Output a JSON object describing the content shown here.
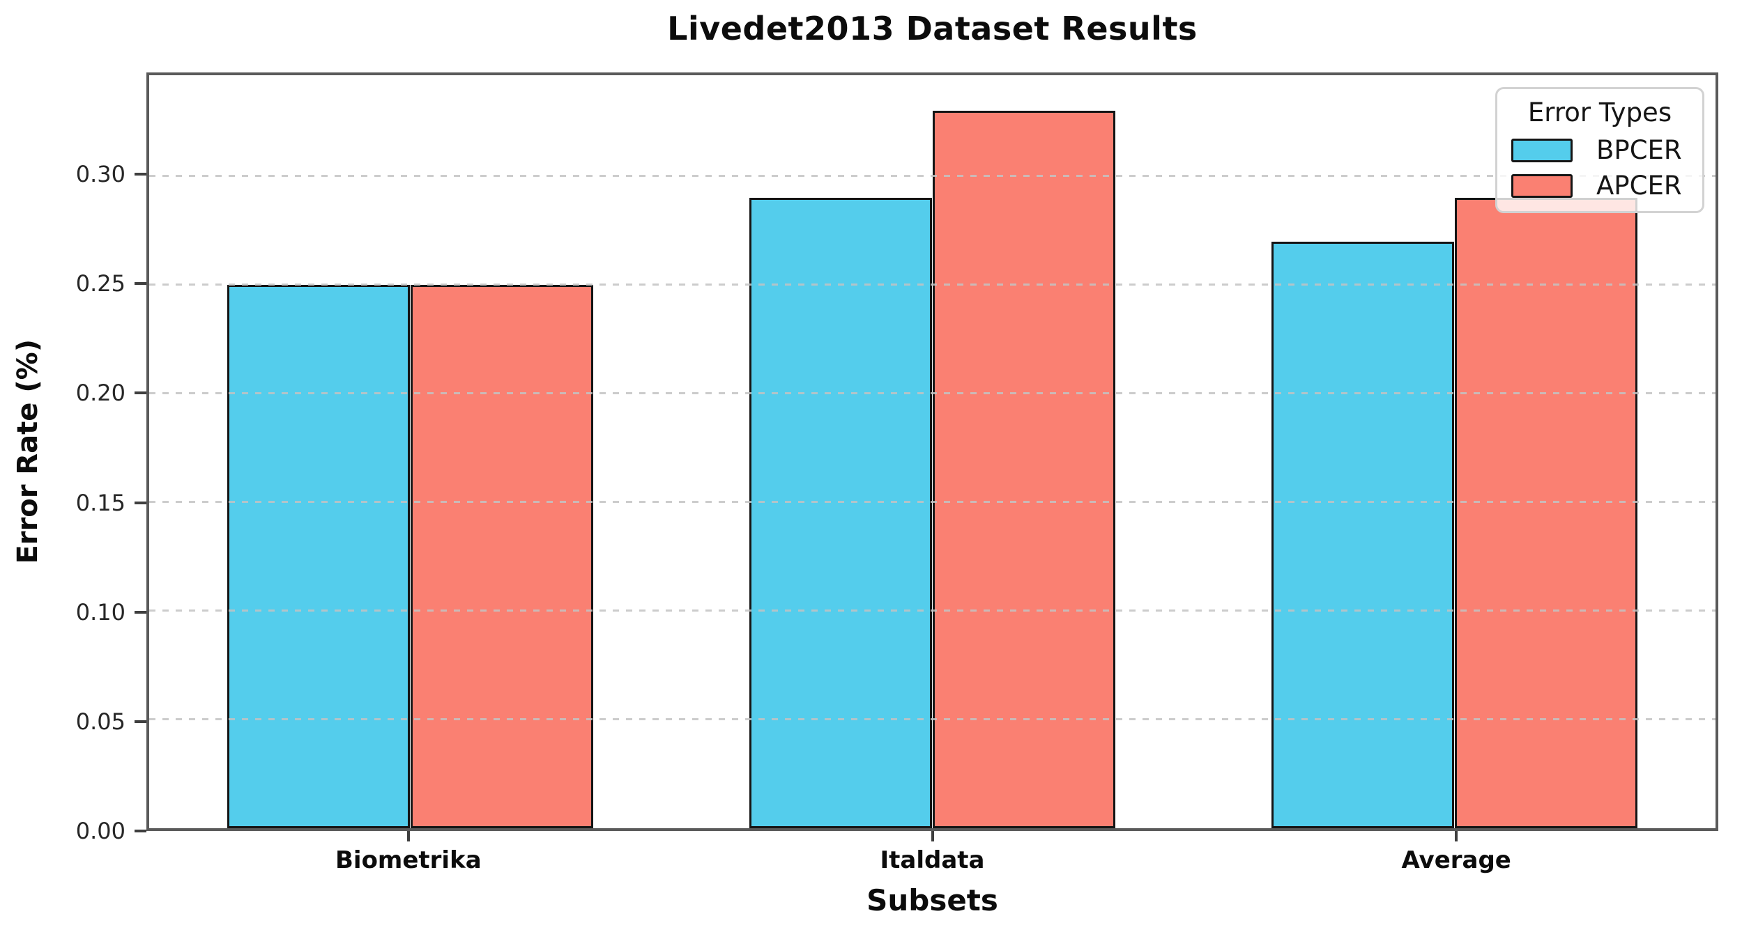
{
  "chart_data": {
    "type": "bar",
    "title": "Livedet2013 Dataset Results",
    "xlabel": "Subsets",
    "ylabel": "Error Rate (%)",
    "categories": [
      "Biometrika",
      "Italdata",
      "Average"
    ],
    "series": [
      {
        "name": "BPCER",
        "color": "#54cdec",
        "values": [
          0.25,
          0.29,
          0.27
        ]
      },
      {
        "name": "APCER",
        "color": "#fa8072",
        "values": [
          0.25,
          0.33,
          0.29
        ]
      }
    ],
    "legend": {
      "title": "Error Types",
      "position": "upper-right"
    },
    "ylim": [
      0,
      0.3465
    ],
    "yticks": [
      0.0,
      0.05,
      0.1,
      0.15,
      0.2,
      0.25,
      0.3
    ],
    "ytick_labels": [
      "0.00",
      "0.05",
      "0.10",
      "0.15",
      "0.20",
      "0.25",
      "0.30"
    ],
    "grid": true,
    "grid_style": "dashed",
    "bar_width_fraction": 0.35,
    "bar_edge_color": "#151515",
    "axis_color": "#5a5a5a"
  }
}
